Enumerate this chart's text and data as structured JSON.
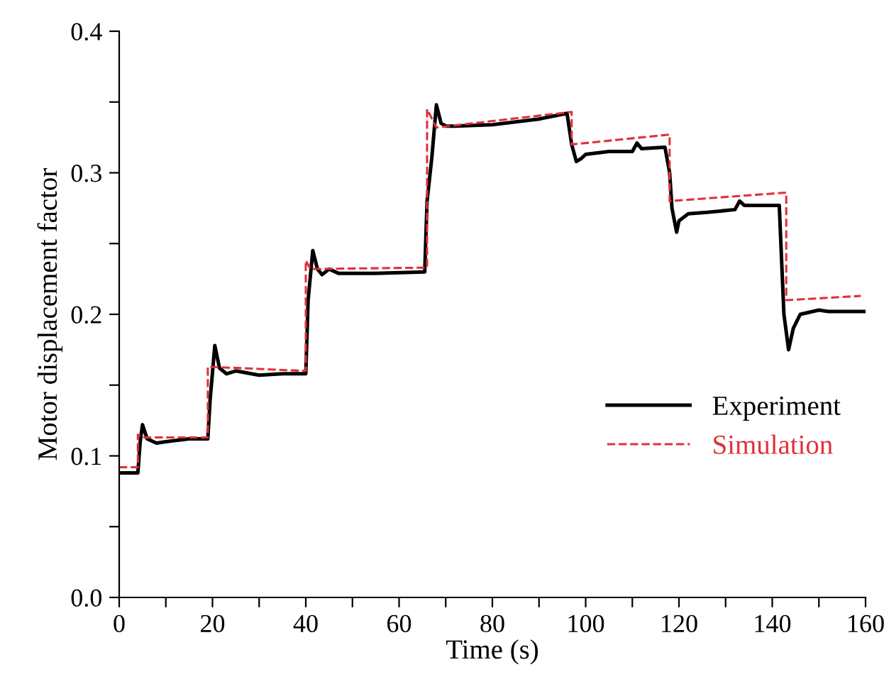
{
  "chart_data": {
    "type": "line",
    "xlabel": "Time (s)",
    "ylabel": "Motor displacement factor",
    "xlim": [
      0,
      160
    ],
    "ylim": [
      0.0,
      0.4
    ],
    "xticks": [
      0,
      {
        "value": 10,
        "label": null
      },
      20,
      {
        "value": 30,
        "label": null
      },
      40,
      {
        "value": 50,
        "label": null
      },
      60,
      {
        "value": 70,
        "label": null
      },
      80,
      {
        "value": 90,
        "label": null
      },
      100,
      {
        "value": 110,
        "label": null
      },
      120,
      {
        "value": 130,
        "label": null
      },
      140,
      {
        "value": 150,
        "label": null
      },
      160
    ],
    "yticks": [
      "0.0",
      {
        "value": 0.05,
        "label": null
      },
      0.1,
      {
        "value": 0.15,
        "label": null
      },
      0.2,
      {
        "value": 0.25,
        "label": null
      },
      0.3,
      {
        "value": 0.35,
        "label": null
      },
      0.4
    ],
    "legend": "right",
    "grid": false,
    "series": [
      {
        "name": "Experiment",
        "color": "#000000",
        "line_style": "solid",
        "x": [
          0,
          4,
          4.5,
          5,
          6,
          8,
          10,
          15,
          19,
          19.5,
          20.5,
          21.5,
          23,
          25,
          30,
          35,
          40,
          40.5,
          41.5,
          42.5,
          43.5,
          45,
          47,
          55,
          65.5,
          66,
          67,
          68,
          69,
          70,
          72,
          80,
          90,
          96,
          97,
          98,
          99,
          100,
          105,
          110,
          111,
          112,
          117,
          118,
          118.5,
          119.5,
          120,
          122,
          126,
          132,
          133,
          134,
          141.5,
          142.5,
          143.5,
          144.5,
          146,
          150,
          152,
          160
        ],
        "values": [
          0.088,
          0.088,
          0.11,
          0.122,
          0.112,
          0.109,
          0.11,
          0.112,
          0.112,
          0.14,
          0.178,
          0.162,
          0.158,
          0.16,
          0.157,
          0.158,
          0.158,
          0.21,
          0.245,
          0.232,
          0.228,
          0.232,
          0.229,
          0.229,
          0.23,
          0.28,
          0.31,
          0.348,
          0.335,
          0.333,
          0.333,
          0.334,
          0.338,
          0.342,
          0.32,
          0.308,
          0.31,
          0.313,
          0.315,
          0.315,
          0.321,
          0.317,
          0.318,
          0.3,
          0.275,
          0.258,
          0.266,
          0.271,
          0.272,
          0.274,
          0.28,
          0.277,
          0.277,
          0.2,
          0.175,
          0.19,
          0.2,
          0.203,
          0.202,
          0.202
        ]
      },
      {
        "name": "Simulation",
        "color": "#e0303a",
        "line_style": "dashed",
        "x": [
          0,
          4,
          4,
          5,
          19,
          19,
          40,
          40,
          41,
          66,
          66,
          68,
          97,
          97,
          118,
          118,
          143,
          143,
          159
        ],
        "values": [
          0.092,
          0.092,
          0.115,
          0.113,
          0.113,
          0.163,
          0.16,
          0.238,
          0.232,
          0.233,
          0.345,
          0.332,
          0.343,
          0.32,
          0.327,
          0.28,
          0.286,
          0.21,
          0.213
        ]
      }
    ]
  }
}
